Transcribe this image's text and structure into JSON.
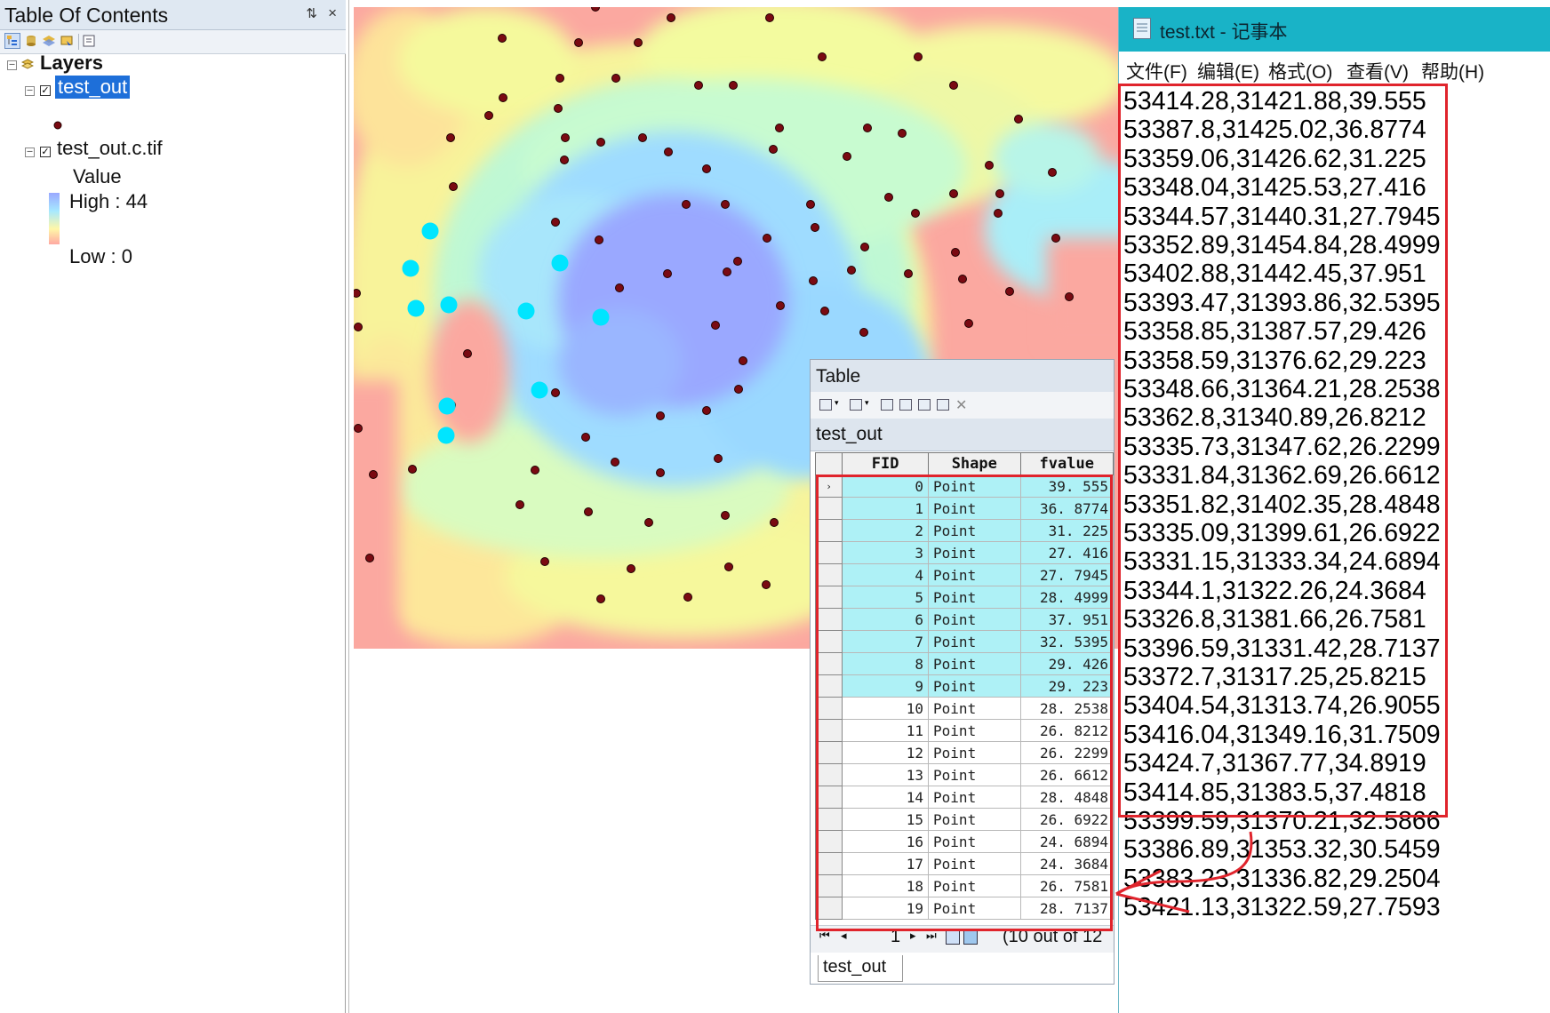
{
  "toc": {
    "title": "Table Of Contents",
    "pin_glyph": "ᵽ",
    "close_glyph": "×",
    "root_label": "Layers",
    "layers": [
      {
        "name": "test_out",
        "checked": true,
        "selected": true
      },
      {
        "name": "test_out.c.tif",
        "checked": true,
        "selected": false
      }
    ],
    "legend": {
      "title": "Value",
      "high_label": "High : 44",
      "low_label": "Low : 0"
    }
  },
  "colors": {
    "selection_blue": "#1e6fd9",
    "point_dark": "#7a0a12",
    "point_selected": "#00e5ff",
    "highlight_row": "#aef1f6",
    "annotation_red": "#e0242c",
    "notepad_titlebar": "#19b3c7"
  },
  "map": {
    "dark_points": [
      [
        272,
        0
      ],
      [
        167,
        35
      ],
      [
        357,
        12
      ],
      [
        468,
        12
      ],
      [
        253,
        40
      ],
      [
        320,
        40
      ],
      [
        232,
        80
      ],
      [
        295,
        80
      ],
      [
        527,
        56
      ],
      [
        427,
        88
      ],
      [
        635,
        56
      ],
      [
        675,
        88
      ],
      [
        168,
        102
      ],
      [
        230,
        114
      ],
      [
        388,
        88
      ],
      [
        152,
        122
      ],
      [
        109,
        147
      ],
      [
        238,
        147
      ],
      [
        278,
        152
      ],
      [
        325,
        147
      ],
      [
        479,
        136
      ],
      [
        578,
        136
      ],
      [
        748,
        126
      ],
      [
        112,
        202
      ],
      [
        237,
        172
      ],
      [
        354,
        163
      ],
      [
        397,
        182
      ],
      [
        472,
        160
      ],
      [
        555,
        168
      ],
      [
        617,
        142
      ],
      [
        715,
        178
      ],
      [
        786,
        186
      ],
      [
        374,
        222
      ],
      [
        418,
        222
      ],
      [
        514,
        222
      ],
      [
        602,
        214
      ],
      [
        675,
        210
      ],
      [
        727,
        210
      ],
      [
        227,
        242
      ],
      [
        276,
        262
      ],
      [
        465,
        260
      ],
      [
        519,
        248
      ],
      [
        575,
        270
      ],
      [
        632,
        232
      ],
      [
        725,
        232
      ],
      [
        677,
        276
      ],
      [
        790,
        260
      ],
      [
        3,
        322
      ],
      [
        5,
        360
      ],
      [
        299,
        316
      ],
      [
        353,
        300
      ],
      [
        420,
        298
      ],
      [
        432,
        286
      ],
      [
        517,
        308
      ],
      [
        560,
        296
      ],
      [
        624,
        300
      ],
      [
        685,
        306
      ],
      [
        738,
        320
      ],
      [
        805,
        326
      ],
      [
        480,
        336
      ],
      [
        530,
        342
      ],
      [
        407,
        358
      ],
      [
        574,
        366
      ],
      [
        692,
        356
      ],
      [
        128,
        390
      ],
      [
        227,
        434
      ],
      [
        438,
        398
      ],
      [
        554,
        410
      ],
      [
        630,
        416
      ],
      [
        5,
        474
      ],
      [
        110,
        448
      ],
      [
        261,
        484
      ],
      [
        345,
        460
      ],
      [
        397,
        454
      ],
      [
        433,
        430
      ],
      [
        540,
        448
      ],
      [
        22,
        526
      ],
      [
        66,
        520
      ],
      [
        204,
        521
      ],
      [
        294,
        512
      ],
      [
        345,
        524
      ],
      [
        410,
        508
      ],
      [
        530,
        526
      ],
      [
        187,
        560
      ],
      [
        264,
        568
      ],
      [
        332,
        580
      ],
      [
        418,
        572
      ],
      [
        473,
        580
      ],
      [
        18,
        620
      ],
      [
        215,
        624
      ],
      [
        312,
        632
      ],
      [
        422,
        630
      ],
      [
        523,
        636
      ],
      [
        278,
        666
      ],
      [
        376,
        664
      ],
      [
        464,
        650
      ],
      [
        562,
        656
      ]
    ],
    "selected_points": [
      [
        86,
        252
      ],
      [
        64,
        294
      ],
      [
        232,
        288
      ],
      [
        70,
        339
      ],
      [
        107,
        335
      ],
      [
        194,
        342
      ],
      [
        278,
        349
      ],
      [
        209,
        431
      ],
      [
        105,
        449
      ],
      [
        104,
        482
      ]
    ]
  },
  "table_window": {
    "title": "Table",
    "layer_tab": "test_out",
    "columns": [
      "FID",
      "Shape",
      "fvalue"
    ],
    "rows": [
      {
        "fid": "0",
        "shape": "Point",
        "fvalue": "39. 555"
      },
      {
        "fid": "1",
        "shape": "Point",
        "fvalue": "36. 8774"
      },
      {
        "fid": "2",
        "shape": "Point",
        "fvalue": "31. 225"
      },
      {
        "fid": "3",
        "shape": "Point",
        "fvalue": "27. 416"
      },
      {
        "fid": "4",
        "shape": "Point",
        "fvalue": "27. 7945"
      },
      {
        "fid": "5",
        "shape": "Point",
        "fvalue": "28. 4999"
      },
      {
        "fid": "6",
        "shape": "Point",
        "fvalue": "37. 951"
      },
      {
        "fid": "7",
        "shape": "Point",
        "fvalue": "32. 5395"
      },
      {
        "fid": "8",
        "shape": "Point",
        "fvalue": "29. 426"
      },
      {
        "fid": "9",
        "shape": "Point",
        "fvalue": "29. 223"
      },
      {
        "fid": "10",
        "shape": "Point",
        "fvalue": "28. 2538"
      },
      {
        "fid": "11",
        "shape": "Point",
        "fvalue": "26. 8212"
      },
      {
        "fid": "12",
        "shape": "Point",
        "fvalue": "26. 2299"
      },
      {
        "fid": "13",
        "shape": "Point",
        "fvalue": "26. 6612"
      },
      {
        "fid": "14",
        "shape": "Point",
        "fvalue": "28. 4848"
      },
      {
        "fid": "15",
        "shape": "Point",
        "fvalue": "26. 6922"
      },
      {
        "fid": "16",
        "shape": "Point",
        "fvalue": "24. 6894"
      },
      {
        "fid": "17",
        "shape": "Point",
        "fvalue": "24. 3684"
      },
      {
        "fid": "18",
        "shape": "Point",
        "fvalue": "26. 7581"
      },
      {
        "fid": "19",
        "shape": "Point",
        "fvalue": "28. 7137"
      }
    ],
    "highlighted_count": 10,
    "nav": {
      "first": "⏮",
      "prev": "◂",
      "record": "1",
      "next": "▸",
      "last": "⏭",
      "status": "(10 out of 12"
    },
    "bottom_tab": "test_out"
  },
  "notepad": {
    "title": "test.txt - 记事本",
    "menu": [
      "文件(F)",
      "编辑(E)",
      "格式(O)",
      "查看(V)",
      "帮助(H)"
    ],
    "lines": [
      "53414.28,31421.88,39.555",
      "53387.8,31425.02,36.8774",
      "53359.06,31426.62,31.225",
      "53348.04,31425.53,27.416",
      "53344.57,31440.31,27.7945",
      "53352.89,31454.84,28.4999",
      "53402.88,31442.45,37.951",
      "53393.47,31393.86,32.5395",
      "53358.85,31387.57,29.426",
      "53358.59,31376.62,29.223",
      "53348.66,31364.21,28.2538",
      "53362.8,31340.89,26.8212",
      "53335.73,31347.62,26.2299",
      "53331.84,31362.69,26.6612",
      "53351.82,31402.35,28.4848",
      "53335.09,31399.61,26.6922",
      "53331.15,31333.34,24.6894",
      "53344.1,31322.26,24.3684",
      "53326.8,31381.66,26.7581",
      "53396.59,31331.42,28.7137",
      "53372.7,31317.25,25.8215",
      "53404.54,31313.74,26.9055",
      "53416.04,31349.16,31.7509",
      "53424.7,31367.77,34.8919",
      "53414.85,31383.5,37.4818",
      "53399.59,31370.21,32.5866",
      "53386.89,31353.32,30.5459",
      "53383.23,31336.82,29.2504",
      "53421.13,31322.59,27.7593"
    ]
  }
}
